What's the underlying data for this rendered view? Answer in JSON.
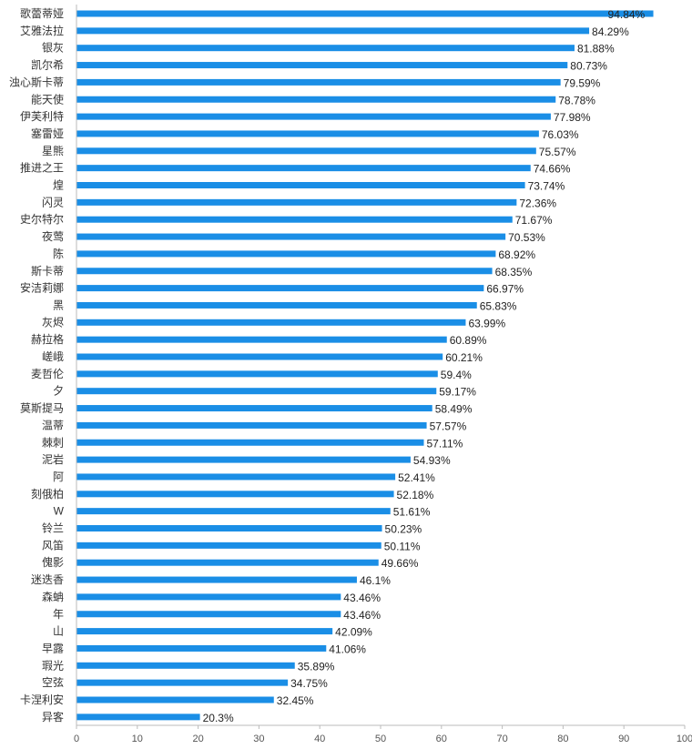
{
  "chart_data": {
    "type": "bar",
    "orientation": "horizontal",
    "title": "",
    "xlabel": "",
    "ylabel": "",
    "xlim": [
      0,
      100
    ],
    "x_ticks": [
      0,
      10,
      20,
      30,
      40,
      50,
      60,
      70,
      80,
      90,
      100
    ],
    "value_suffix": "%",
    "bar_color": "#1a8ee6",
    "categories": [
      "歌蕾蒂娅",
      "艾雅法拉",
      "银灰",
      "凯尔希",
      "浊心斯卡蒂",
      "能天使",
      "伊芙利特",
      "塞雷娅",
      "星熊",
      "推进之王",
      "煌",
      "闪灵",
      "史尔特尔",
      "夜莺",
      "陈",
      "斯卡蒂",
      "安洁莉娜",
      "黑",
      "灰烬",
      "赫拉格",
      "嵯峨",
      "麦哲伦",
      "夕",
      "莫斯提马",
      "温蒂",
      "棘刺",
      "泥岩",
      "阿",
      "刻俄柏",
      "W",
      "铃兰",
      "风笛",
      "傀影",
      "迷迭香",
      "森蚺",
      "年",
      "山",
      "早露",
      "瑕光",
      "空弦",
      "卡涅利安",
      "异客"
    ],
    "values": [
      94.84,
      84.29,
      81.88,
      80.73,
      79.59,
      78.78,
      77.98,
      76.03,
      75.57,
      74.66,
      73.74,
      72.36,
      71.67,
      70.53,
      68.92,
      68.35,
      66.97,
      65.83,
      63.99,
      60.89,
      60.21,
      59.4,
      59.17,
      58.49,
      57.57,
      57.11,
      54.93,
      52.41,
      52.18,
      51.61,
      50.23,
      50.11,
      49.66,
      46.1,
      43.46,
      43.46,
      42.09,
      41.06,
      35.89,
      34.75,
      32.45,
      20.3
    ],
    "value_labels": [
      "94.84%",
      "84.29%",
      "81.88%",
      "80.73%",
      "79.59%",
      "78.78%",
      "77.98%",
      "76.03%",
      "75.57%",
      "74.66%",
      "73.74%",
      "72.36%",
      "71.67%",
      "70.53%",
      "68.92%",
      "68.35%",
      "66.97%",
      "65.83%",
      "63.99%",
      "60.89%",
      "60.21%",
      "59.4%",
      "59.17%",
      "58.49%",
      "57.57%",
      "57.11%",
      "54.93%",
      "52.41%",
      "52.18%",
      "51.61%",
      "50.23%",
      "50.11%",
      "49.66%",
      "46.1%",
      "43.46%",
      "43.46%",
      "42.09%",
      "41.06%",
      "35.89%",
      "34.75%",
      "32.45%",
      "20.3%"
    ],
    "grid": false,
    "legend": "none"
  }
}
